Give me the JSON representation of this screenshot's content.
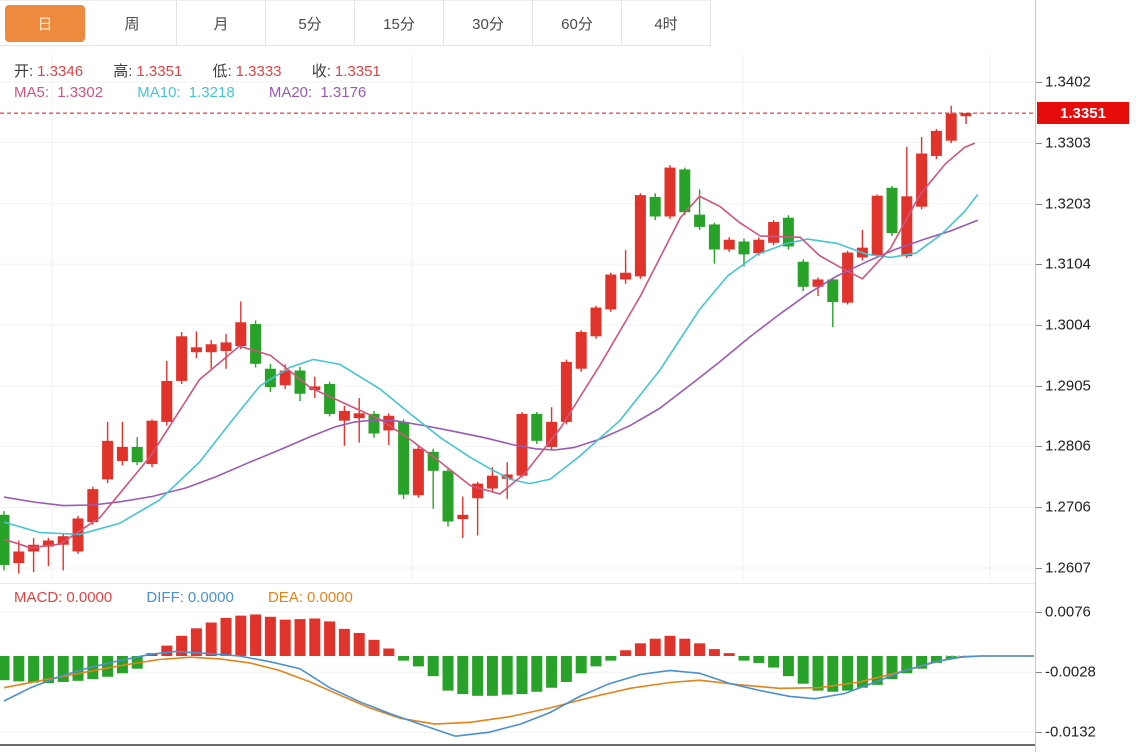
{
  "tabs": [
    {
      "label": "日",
      "active": true
    },
    {
      "label": "周",
      "active": false
    },
    {
      "label": "月",
      "active": false
    },
    {
      "label": "5分",
      "active": false
    },
    {
      "label": "15分",
      "active": false
    },
    {
      "label": "30分",
      "active": false
    },
    {
      "label": "60分",
      "active": false
    },
    {
      "label": "4时",
      "active": false
    }
  ],
  "ohlc_bar": {
    "open_label": "开:",
    "open": "1.3346",
    "high_label": "高:",
    "high": "1.3351",
    "low_label": "低:",
    "low": "1.3333",
    "close_label": "收:",
    "close": "1.3351"
  },
  "ma_bar": {
    "ma5_label": "MA5:",
    "ma5": "1.3302",
    "ma10_label": "MA10:",
    "ma10": "1.3218",
    "ma20_label": "MA20:",
    "ma20": "1.3176"
  },
  "macd_bar": {
    "macd_label": "MACD:",
    "macd": "0.0000",
    "diff_label": "DIFF:",
    "diff": "0.0000",
    "dea_label": "DEA:",
    "dea": "0.0000"
  },
  "price_axis": {
    "ticks": [
      "1.3402",
      "1.3303",
      "1.3203",
      "1.3104",
      "1.3004",
      "1.2905",
      "1.2806",
      "1.2706",
      "1.2607"
    ],
    "current_price": "1.3351"
  },
  "macd_axis": {
    "ticks": [
      "0.0076",
      "-0.0028",
      "-0.0132"
    ]
  },
  "colors": {
    "up": "#e0332b",
    "down": "#28a228",
    "ma5": "#d2537d",
    "ma10": "#45c5d2",
    "ma20": "#9b59b6",
    "diff": "#4a90d2",
    "dea": "#e2841c",
    "tab_accent": "#ee8a3e",
    "price_flag": "#e60c0c",
    "ohlc_value": "#e04444",
    "macd_legend": "#e04444"
  },
  "chart_data": [
    {
      "type": "candlestick",
      "title": "daily K-line",
      "yticks": [
        1.3402,
        1.3303,
        1.3203,
        1.3104,
        1.3004,
        1.2905,
        1.2806,
        1.2706,
        1.2607
      ],
      "ylim": [
        1.256,
        1.344
      ],
      "current_price": 1.3351,
      "grid": true,
      "legend_position": "top-left",
      "candles_ohlc": [
        [
          1.2694,
          1.27,
          1.2603,
          1.2612
        ],
        [
          1.2615,
          1.2652,
          1.2598,
          1.2634
        ],
        [
          1.2634,
          1.2656,
          1.26,
          1.2645
        ],
        [
          1.2642,
          1.2656,
          1.261,
          1.2652
        ],
        [
          1.2645,
          1.2663,
          1.2603,
          1.2659
        ],
        [
          1.2634,
          1.2692,
          1.263,
          1.2688
        ],
        [
          1.2682,
          1.274,
          1.2678,
          1.2736
        ],
        [
          1.2752,
          1.2846,
          1.2746,
          1.2815
        ],
        [
          1.2782,
          1.2846,
          1.2775,
          1.2805
        ],
        [
          1.2805,
          1.2821,
          1.2775,
          1.278
        ],
        [
          1.2777,
          1.285,
          1.2772,
          1.2848
        ],
        [
          1.2846,
          1.2946,
          1.284,
          1.2913
        ],
        [
          1.2913,
          1.2993,
          1.2908,
          1.2986
        ],
        [
          1.296,
          1.2994,
          1.295,
          1.2968
        ],
        [
          1.296,
          1.298,
          1.2933,
          1.2973
        ],
        [
          1.2962,
          1.299,
          1.2933,
          1.2976
        ],
        [
          1.297,
          1.3043,
          1.2965,
          1.3009
        ],
        [
          1.3006,
          1.3012,
          1.2935,
          1.2941
        ],
        [
          1.2933,
          1.2941,
          1.2895,
          1.2903
        ],
        [
          1.2906,
          1.294,
          1.29,
          1.293
        ],
        [
          1.293,
          1.2936,
          1.288,
          1.2892
        ],
        [
          1.2898,
          1.292,
          1.2885,
          1.2904
        ],
        [
          1.2908,
          1.2912,
          1.2855,
          1.2859
        ],
        [
          1.2848,
          1.2872,
          1.2807,
          1.2864
        ],
        [
          1.2852,
          1.2885,
          1.2812,
          1.286
        ],
        [
          1.2859,
          1.2864,
          1.282,
          1.2827
        ],
        [
          1.2832,
          1.286,
          1.2808,
          1.2856
        ],
        [
          1.2846,
          1.285,
          1.272,
          1.2727
        ],
        [
          1.2726,
          1.2806,
          1.2722,
          1.2802
        ],
        [
          1.2797,
          1.2802,
          1.2704,
          1.2766
        ],
        [
          1.2766,
          1.277,
          1.2675,
          1.2683
        ],
        [
          1.2687,
          1.2724,
          1.2656,
          1.2694
        ],
        [
          1.2721,
          1.2748,
          1.266,
          1.2745
        ],
        [
          1.2737,
          1.2772,
          1.2732,
          1.2758
        ],
        [
          1.2753,
          1.278,
          1.272,
          1.276
        ],
        [
          1.2758,
          1.2862,
          1.2755,
          1.2859
        ],
        [
          1.2859,
          1.2862,
          1.281,
          1.2815
        ],
        [
          1.2805,
          1.287,
          1.28,
          1.2846
        ],
        [
          1.2846,
          1.2948,
          1.2842,
          1.2944
        ],
        [
          1.2933,
          1.2996,
          1.2928,
          1.2993
        ],
        [
          1.2986,
          1.3036,
          1.2982,
          1.3033
        ],
        [
          1.303,
          1.309,
          1.3026,
          1.3087
        ],
        [
          1.3079,
          1.3127,
          1.3072,
          1.309
        ],
        [
          1.3084,
          1.322,
          1.308,
          1.3217
        ],
        [
          1.3214,
          1.322,
          1.3176,
          1.3182
        ],
        [
          1.3182,
          1.3266,
          1.3178,
          1.3262
        ],
        [
          1.3259,
          1.3262,
          1.3184,
          1.3189
        ],
        [
          1.3185,
          1.3226,
          1.316,
          1.3165
        ],
        [
          1.3169,
          1.3172,
          1.3105,
          1.3128
        ],
        [
          1.3128,
          1.3148,
          1.3124,
          1.3144
        ],
        [
          1.3141,
          1.3146,
          1.31,
          1.312
        ],
        [
          1.3122,
          1.3148,
          1.3118,
          1.3144
        ],
        [
          1.3139,
          1.3176,
          1.3135,
          1.3173
        ],
        [
          1.318,
          1.3184,
          1.3128,
          1.3133
        ],
        [
          1.3108,
          1.3112,
          1.306,
          1.3067
        ],
        [
          1.3067,
          1.3082,
          1.3052,
          1.3079
        ],
        [
          1.3079,
          1.3082,
          1.3001,
          1.3042
        ],
        [
          1.3041,
          1.3126,
          1.3038,
          1.3123
        ],
        [
          1.3115,
          1.316,
          1.311,
          1.3131
        ],
        [
          1.3118,
          1.3218,
          1.3114,
          1.3216
        ],
        [
          1.3229,
          1.3232,
          1.315,
          1.3155
        ],
        [
          1.3117,
          1.3296,
          1.3114,
          1.3215
        ],
        [
          1.3198,
          1.3312,
          1.3194,
          1.3285
        ],
        [
          1.3281,
          1.3325,
          1.3276,
          1.3322
        ],
        [
          1.3306,
          1.3363,
          1.3302,
          1.335
        ],
        [
          1.3346,
          1.3351,
          1.3333,
          1.3351
        ]
      ],
      "ma5_points": [
        [
          0,
          1.2654
        ],
        [
          1.8,
          1.264
        ],
        [
          3.8,
          1.2646
        ],
        [
          6.5,
          1.269
        ],
        [
          9.9,
          1.279
        ],
        [
          13.2,
          1.2915
        ],
        [
          15.9,
          1.297
        ],
        [
          18,
          1.2955
        ],
        [
          20.7,
          1.2902
        ],
        [
          23.4,
          1.2872
        ],
        [
          25.4,
          1.285
        ],
        [
          27.4,
          1.2818
        ],
        [
          29.5,
          1.278
        ],
        [
          31.5,
          1.2742
        ],
        [
          33.5,
          1.2728
        ],
        [
          35.2,
          1.2762
        ],
        [
          37.6,
          1.2836
        ],
        [
          40.3,
          1.294
        ],
        [
          43,
          1.3052
        ],
        [
          45.7,
          1.318
        ],
        [
          47,
          1.3215
        ],
        [
          48.4,
          1.3198
        ],
        [
          49.7,
          1.3172
        ],
        [
          51.1,
          1.315
        ],
        [
          53.8,
          1.3148
        ],
        [
          55.1,
          1.3118
        ],
        [
          56.8,
          1.3095
        ],
        [
          58,
          1.308
        ],
        [
          59.9,
          1.313
        ],
        [
          61.9,
          1.3218
        ],
        [
          63.6,
          1.3268
        ],
        [
          64.9,
          1.3295
        ],
        [
          65.6,
          1.3302
        ]
      ],
      "ma10_points": [
        [
          0,
          1.2682
        ],
        [
          2.4,
          1.2665
        ],
        [
          5.1,
          1.2662
        ],
        [
          7.8,
          1.268
        ],
        [
          10.5,
          1.2718
        ],
        [
          13.2,
          1.278
        ],
        [
          15.3,
          1.2845
        ],
        [
          17.3,
          1.2905
        ],
        [
          19.3,
          1.2935
        ],
        [
          20.9,
          1.2948
        ],
        [
          22.7,
          1.294
        ],
        [
          25.4,
          1.29
        ],
        [
          27.4,
          1.286
        ],
        [
          29.5,
          1.282
        ],
        [
          31.5,
          1.2788
        ],
        [
          32.8,
          1.277
        ],
        [
          34.2,
          1.2752
        ],
        [
          35.5,
          1.2745
        ],
        [
          36.9,
          1.2752
        ],
        [
          38.9,
          1.279
        ],
        [
          41.6,
          1.2848
        ],
        [
          44.3,
          1.293
        ],
        [
          47,
          1.303
        ],
        [
          48.9,
          1.3085
        ],
        [
          50.9,
          1.312
        ],
        [
          52.9,
          1.3138
        ],
        [
          54.3,
          1.3145
        ],
        [
          56.3,
          1.3138
        ],
        [
          58.3,
          1.312
        ],
        [
          59.9,
          1.3115
        ],
        [
          61.6,
          1.3122
        ],
        [
          63.3,
          1.3152
        ],
        [
          64.9,
          1.319
        ],
        [
          65.8,
          1.3218
        ]
      ],
      "ma20_points": [
        [
          0,
          1.2723
        ],
        [
          2,
          1.2715
        ],
        [
          4,
          1.2709
        ],
        [
          6,
          1.271
        ],
        [
          8,
          1.2716
        ],
        [
          10,
          1.2724
        ],
        [
          12.3,
          1.2738
        ],
        [
          14.3,
          1.2756
        ],
        [
          16.6,
          1.278
        ],
        [
          18.6,
          1.28
        ],
        [
          20.7,
          1.2822
        ],
        [
          22.4,
          1.2838
        ],
        [
          23.7,
          1.2846
        ],
        [
          25,
          1.2849
        ],
        [
          26.4,
          1.2848
        ],
        [
          28.4,
          1.284
        ],
        [
          30.5,
          1.283
        ],
        [
          32.5,
          1.282
        ],
        [
          34.5,
          1.2808
        ],
        [
          35.9,
          1.2802
        ],
        [
          37.2,
          1.28
        ],
        [
          38.5,
          1.2804
        ],
        [
          40.3,
          1.2818
        ],
        [
          42.3,
          1.284
        ],
        [
          44.3,
          1.2868
        ],
        [
          46.3,
          1.2905
        ],
        [
          48.4,
          1.2945
        ],
        [
          50.4,
          1.2985
        ],
        [
          52.4,
          1.3022
        ],
        [
          54.3,
          1.3055
        ],
        [
          56.3,
          1.3085
        ],
        [
          58.3,
          1.3108
        ],
        [
          60.2,
          1.3128
        ],
        [
          62.2,
          1.3145
        ],
        [
          63.9,
          1.3158
        ],
        [
          65.8,
          1.3176
        ]
      ]
    },
    {
      "type": "bar",
      "title": "MACD",
      "yticks": [
        0.0076,
        -0.0028,
        -0.0132
      ],
      "histogram": [
        -0.0042,
        -0.0044,
        -0.0046,
        -0.0047,
        -0.0045,
        -0.0043,
        -0.004,
        -0.0036,
        -0.003,
        -0.0022,
        0.0005,
        0.0018,
        0.0035,
        0.0048,
        0.0058,
        0.0066,
        0.007,
        0.0072,
        0.0068,
        0.0063,
        0.0064,
        0.0065,
        0.006,
        0.0047,
        0.004,
        0.0028,
        0.0013,
        -0.0008,
        -0.0018,
        -0.0035,
        -0.006,
        -0.0066,
        -0.0069,
        -0.0069,
        -0.0067,
        -0.0066,
        -0.0062,
        -0.0055,
        -0.0045,
        -0.003,
        -0.0018,
        -0.0008,
        0.001,
        0.0022,
        0.003,
        0.0035,
        0.003,
        0.0022,
        0.0012,
        0.0005,
        -0.0008,
        -0.0012,
        -0.002,
        -0.0035,
        -0.0048,
        -0.006,
        -0.0062,
        -0.006,
        -0.0055,
        -0.005,
        -0.004,
        -0.003,
        -0.0022,
        -0.0012,
        -0.0005,
        0.0
      ],
      "diff_points": [
        [
          0,
          -0.0078
        ],
        [
          1.8,
          -0.0055
        ],
        [
          3.8,
          -0.0035
        ],
        [
          5.8,
          -0.002
        ],
        [
          7.8,
          -0.0008
        ],
        [
          9.9,
          0.0003
        ],
        [
          11.6,
          0.0008
        ],
        [
          13.9,
          0.0004
        ],
        [
          15.9,
          0
        ],
        [
          18,
          -0.001
        ],
        [
          20,
          -0.0022
        ],
        [
          22,
          -0.0055
        ],
        [
          24.1,
          -0.008
        ],
        [
          26.1,
          -0.01
        ],
        [
          28.1,
          -0.0118
        ],
        [
          30.5,
          -0.0139
        ],
        [
          32.8,
          -0.0132
        ],
        [
          34.9,
          -0.0118
        ],
        [
          36.9,
          -0.0098
        ],
        [
          38.9,
          -0.007
        ],
        [
          40.9,
          -0.0048
        ],
        [
          43,
          -0.0032
        ],
        [
          45,
          -0.0025
        ],
        [
          47,
          -0.003
        ],
        [
          49.1,
          -0.0048
        ],
        [
          51.1,
          -0.006
        ],
        [
          53.1,
          -0.007
        ],
        [
          54.8,
          -0.0074
        ],
        [
          56.8,
          -0.0065
        ],
        [
          58.9,
          -0.0045
        ],
        [
          60.9,
          -0.0025
        ],
        [
          62.9,
          -0.001
        ],
        [
          64.6,
          -0.0002
        ],
        [
          66,
          0
        ],
        [
          69.6,
          0
        ]
      ],
      "dea_points": [
        [
          0,
          -0.0055
        ],
        [
          2.4,
          -0.0043
        ],
        [
          5.1,
          -0.003
        ],
        [
          7.8,
          -0.0017
        ],
        [
          10.5,
          -0.0006
        ],
        [
          12.6,
          -0.0002
        ],
        [
          14.6,
          -0.0005
        ],
        [
          16.6,
          -0.0012
        ],
        [
          18.6,
          -0.0025
        ],
        [
          20.7,
          -0.0045
        ],
        [
          22.7,
          -0.0068
        ],
        [
          24.7,
          -0.009
        ],
        [
          26.8,
          -0.0108
        ],
        [
          29.1,
          -0.0118
        ],
        [
          31.5,
          -0.0115
        ],
        [
          34.2,
          -0.0105
        ],
        [
          36.9,
          -0.009
        ],
        [
          39.6,
          -0.0072
        ],
        [
          42.3,
          -0.0056
        ],
        [
          45,
          -0.0046
        ],
        [
          47,
          -0.0042
        ],
        [
          49.7,
          -0.005
        ],
        [
          52.4,
          -0.0056
        ],
        [
          55.1,
          -0.0055
        ],
        [
          57.8,
          -0.0045
        ],
        [
          60.5,
          -0.0028
        ],
        [
          63.3,
          -0.0008
        ],
        [
          64.9,
          -0.0001
        ],
        [
          66,
          0
        ],
        [
          69.6,
          0
        ]
      ]
    }
  ]
}
